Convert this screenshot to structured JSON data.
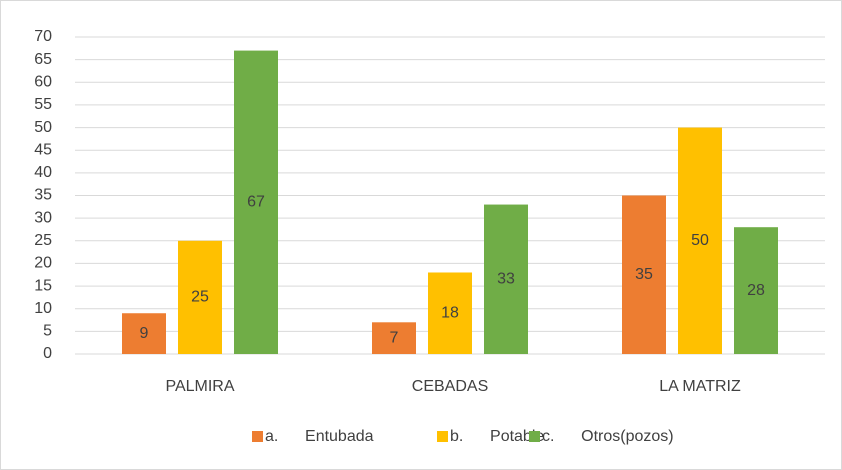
{
  "chart_data": {
    "type": "bar",
    "categories": [
      "PALMIRA",
      "CEBADAS",
      "LA MATRIZ"
    ],
    "series": [
      {
        "name": "a.      Entubada",
        "color": "#ed7d31",
        "values": [
          9,
          7,
          35
        ]
      },
      {
        "name": "b.      Potable",
        "color": "#ffc000",
        "values": [
          25,
          18,
          50
        ]
      },
      {
        "name": "c.      Otros(pozos)",
        "color": "#70ad47",
        "values": [
          67,
          33,
          28
        ]
      }
    ],
    "ylim": [
      0,
      70
    ],
    "yticks": [
      0,
      5,
      10,
      15,
      20,
      25,
      30,
      35,
      40,
      45,
      50,
      55,
      60,
      65,
      70
    ],
    "grid": true,
    "legend": "bottom"
  }
}
